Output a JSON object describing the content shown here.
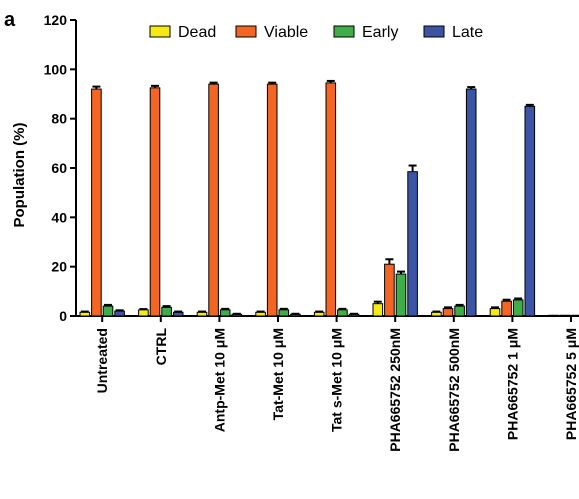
{
  "panel_label": "a",
  "colors": {
    "Dead": "#f5ea14",
    "Viable": "#f26522",
    "Early": "#3fae49",
    "Late": "#3b54a5"
  },
  "chart_data": {
    "type": "bar",
    "title": "",
    "xlabel": "",
    "ylabel": "Population (%)",
    "ylim": [
      0,
      120
    ],
    "yticks": [
      0,
      20,
      40,
      60,
      80,
      100,
      120
    ],
    "grid": false,
    "legend": "top",
    "categories": [
      "Untreated",
      "CTRL",
      "Antp-Met 10 μM",
      "Tat-Met 10 μM",
      "Tat s-Met 10 μM",
      "PHA665752 250nM",
      "PHA665752 500nM",
      "PHA665752 1 μM",
      "PHA665752 5 μM"
    ],
    "series": [
      {
        "name": "Dead",
        "values": [
          1.5,
          2.5,
          1.5,
          1.5,
          1.5,
          5.0,
          1.5,
          3.0,
          0.3
        ],
        "errors": [
          0.3,
          0.3,
          0.3,
          0.3,
          0.3,
          0.8,
          0.3,
          0.5,
          0
        ]
      },
      {
        "name": "Viable",
        "values": [
          92,
          92.5,
          94,
          94,
          94.5,
          21,
          3.0,
          6.0,
          0.3
        ],
        "errors": [
          1.0,
          0.8,
          0.6,
          0.6,
          0.8,
          2.0,
          0.5,
          0.6,
          0
        ]
      },
      {
        "name": "Early",
        "values": [
          4.0,
          3.5,
          2.5,
          2.5,
          2.5,
          17,
          4.0,
          6.5,
          0.3
        ],
        "errors": [
          0.5,
          0.5,
          0.4,
          0.4,
          0.4,
          1.0,
          0.5,
          0.6,
          0
        ]
      },
      {
        "name": "Late",
        "values": [
          2.0,
          1.5,
          0.7,
          0.7,
          0.7,
          58.5,
          92,
          85,
          0.3
        ],
        "errors": [
          0.3,
          0.3,
          0.2,
          0.2,
          0.2,
          2.5,
          0.8,
          0.6,
          0
        ]
      }
    ]
  }
}
